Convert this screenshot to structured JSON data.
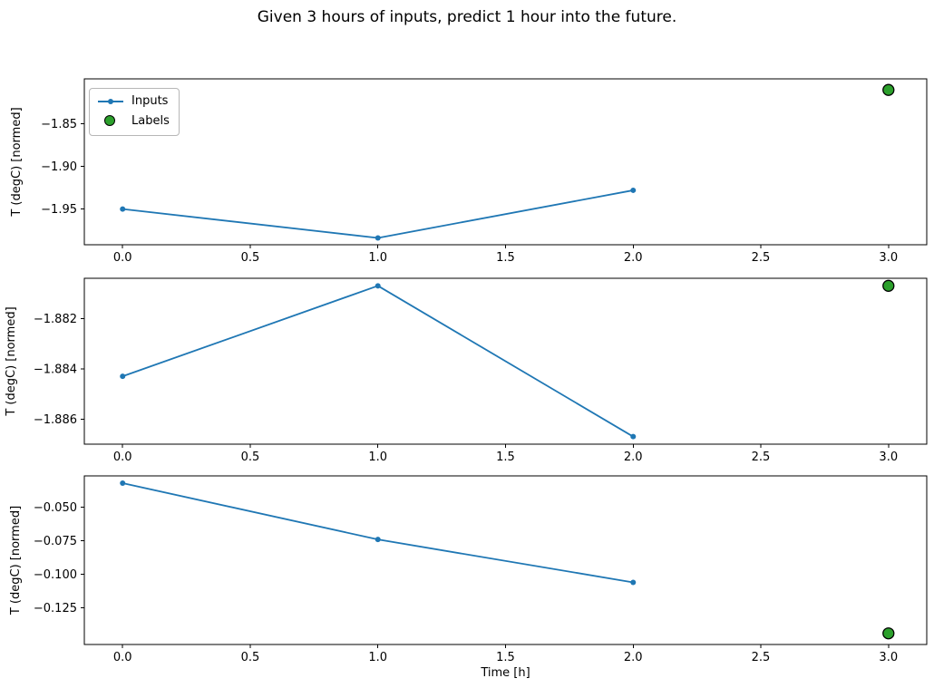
{
  "title": "Given 3 hours of inputs, predict 1 hour into the future.",
  "legend": {
    "position": "upper-left",
    "items": [
      {
        "label": "Inputs",
        "marker": "line-with-dot",
        "color": "#1f77b4"
      },
      {
        "label": "Labels",
        "marker": "filled-circle",
        "color": "#2ca02c",
        "edge_color": "#000000"
      }
    ]
  },
  "chart_data": [
    {
      "type": "line",
      "ylabel": "T (degC) [normed]",
      "xlabel": "",
      "xlim": [
        -0.15,
        3.15
      ],
      "ylim": [
        -1.992,
        -1.797
      ],
      "xticks": [
        0.0,
        0.5,
        1.0,
        1.5,
        2.0,
        2.5,
        3.0
      ],
      "xtick_labels": [
        "0.0",
        "0.5",
        "1.0",
        "1.5",
        "2.0",
        "2.5",
        "3.0"
      ],
      "yticks": [
        -1.85,
        -1.9,
        -1.95
      ],
      "ytick_labels": [
        "−1.85",
        "−1.90",
        "−1.95"
      ],
      "show_legend": true,
      "series": [
        {
          "name": "Inputs",
          "type": "line",
          "color": "#1f77b4",
          "marker": "dot",
          "x": [
            0,
            1,
            2
          ],
          "y": [
            -1.95,
            -1.984,
            -1.928
          ]
        },
        {
          "name": "Labels",
          "type": "scatter",
          "color": "#2ca02c",
          "edge_color": "#000000",
          "x": [
            3
          ],
          "y": [
            -1.81
          ]
        }
      ]
    },
    {
      "type": "line",
      "ylabel": "T (degC) [normed]",
      "xlabel": "",
      "xlim": [
        -0.15,
        3.15
      ],
      "ylim": [
        -1.887,
        -1.8804
      ],
      "xticks": [
        0.0,
        0.5,
        1.0,
        1.5,
        2.0,
        2.5,
        3.0
      ],
      "xtick_labels": [
        "0.0",
        "0.5",
        "1.0",
        "1.5",
        "2.0",
        "2.5",
        "3.0"
      ],
      "yticks": [
        -1.882,
        -1.884,
        -1.886
      ],
      "ytick_labels": [
        "−1.882",
        "−1.884",
        "−1.886"
      ],
      "show_legend": false,
      "series": [
        {
          "name": "Inputs",
          "type": "line",
          "color": "#1f77b4",
          "marker": "dot",
          "x": [
            0,
            1,
            2
          ],
          "y": [
            -1.8843,
            -1.8807,
            -1.8867
          ]
        },
        {
          "name": "Labels",
          "type": "scatter",
          "color": "#2ca02c",
          "edge_color": "#000000",
          "x": [
            3
          ],
          "y": [
            -1.8807
          ]
        }
      ]
    },
    {
      "type": "line",
      "ylabel": "T (degC) [normed]",
      "xlabel": "Time [h]",
      "xlim": [
        -0.15,
        3.15
      ],
      "ylim": [
        -0.1523,
        -0.0266
      ],
      "xticks": [
        0.0,
        0.5,
        1.0,
        1.5,
        2.0,
        2.5,
        3.0
      ],
      "xtick_labels": [
        "0.0",
        "0.5",
        "1.0",
        "1.5",
        "2.0",
        "2.5",
        "3.0"
      ],
      "yticks": [
        -0.05,
        -0.075,
        -0.1,
        -0.125
      ],
      "ytick_labels": [
        "−0.050",
        "−0.075",
        "−0.100",
        "−0.125"
      ],
      "show_legend": false,
      "series": [
        {
          "name": "Inputs",
          "type": "line",
          "color": "#1f77b4",
          "marker": "dot",
          "x": [
            0,
            1,
            2
          ],
          "y": [
            -0.032,
            -0.074,
            -0.106
          ]
        },
        {
          "name": "Labels",
          "type": "scatter",
          "color": "#2ca02c",
          "edge_color": "#000000",
          "x": [
            3
          ],
          "y": [
            -0.144
          ]
        }
      ]
    }
  ]
}
